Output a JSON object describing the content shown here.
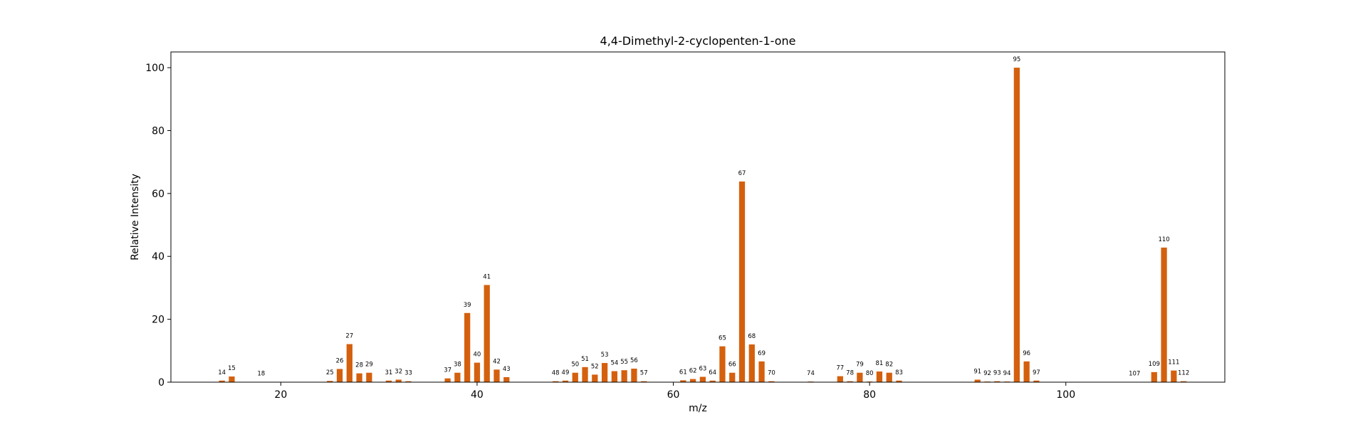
{
  "chart_data": {
    "type": "bar",
    "title": "4,4-Dimethyl-2-cyclopenten-1-one",
    "xlabel": "m/z",
    "ylabel": "Relative Intensity",
    "xlim": [
      8.8,
      116.2
    ],
    "ylim": [
      0,
      105
    ],
    "xticks": [
      20,
      40,
      60,
      80,
      100
    ],
    "yticks": [
      0,
      20,
      40,
      60,
      80,
      100
    ],
    "bar_color": "#d4600e",
    "grid": false,
    "legend": "none",
    "x": [
      14,
      15,
      18,
      25,
      26,
      27,
      28,
      29,
      31,
      32,
      33,
      37,
      38,
      39,
      40,
      41,
      42,
      43,
      48,
      49,
      50,
      51,
      52,
      53,
      54,
      55,
      56,
      57,
      61,
      62,
      63,
      64,
      65,
      66,
      67,
      68,
      69,
      70,
      74,
      77,
      78,
      79,
      80,
      81,
      82,
      83,
      91,
      92,
      93,
      94,
      95,
      96,
      97,
      107,
      109,
      110,
      111,
      112
    ],
    "values": [
      0.5,
      1.8,
      0.1,
      0.4,
      4.2,
      12.1,
      2.8,
      3.0,
      0.5,
      0.8,
      0.3,
      1.2,
      3.0,
      22.0,
      6.2,
      30.9,
      4.0,
      1.6,
      0.3,
      0.5,
      3.0,
      4.8,
      2.4,
      6.1,
      3.5,
      3.8,
      4.3,
      0.3,
      0.6,
      1.0,
      1.7,
      0.5,
      11.4,
      3.0,
      63.8,
      12.0,
      6.6,
      0.3,
      0.2,
      1.9,
      0.3,
      3.0,
      0.2,
      3.4,
      3.0,
      0.5,
      0.8,
      0.2,
      0.3,
      0.2,
      100.0,
      6.6,
      0.5,
      0.1,
      3.2,
      42.8,
      3.7,
      0.3
    ]
  }
}
